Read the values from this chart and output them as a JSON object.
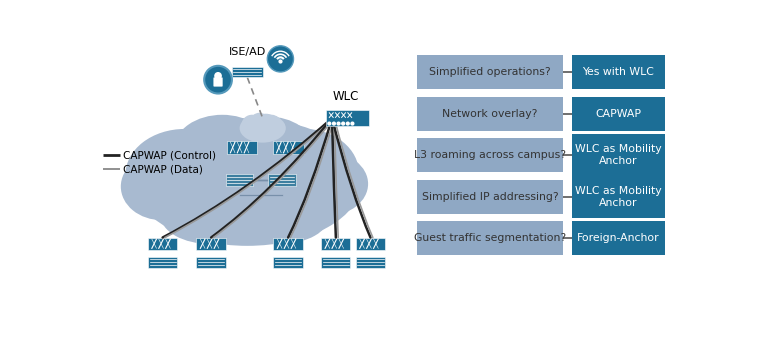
{
  "questions": [
    "Simplified operations?",
    "Network overlay?",
    "L3 roaming across campus?",
    "Simplified IP addressing?",
    "Guest traffic segmentation?"
  ],
  "answers": [
    "Yes with WLC",
    "CAPWAP",
    "WLC as Mobility\nAnchor",
    "WLC as Mobility\nAnchor",
    "Foreign-Anchor"
  ],
  "q_box_color": "#8fa8c4",
  "a_box_color": "#1c6e96",
  "q_text_color": "#333333",
  "a_text_color": "#ffffff",
  "bg_color": "#ffffff",
  "legend_lines": [
    {
      "label": "CAPWAP (Control)",
      "color": "#222222",
      "lw": 2.0
    },
    {
      "label": "CAPWAP (Data)",
      "color": "#888888",
      "lw": 1.3
    }
  ],
  "ise_ad_label": "ISE/AD",
  "wlc_label": "WLC",
  "cloud_color": "#a8bad0",
  "cloud_inner_color": "#b8c8dc",
  "device_color": "#1c6e96",
  "connector_line_color": "#555555",
  "dashed_line_color": "#888888",
  "cross_line_color": "#7890aa"
}
